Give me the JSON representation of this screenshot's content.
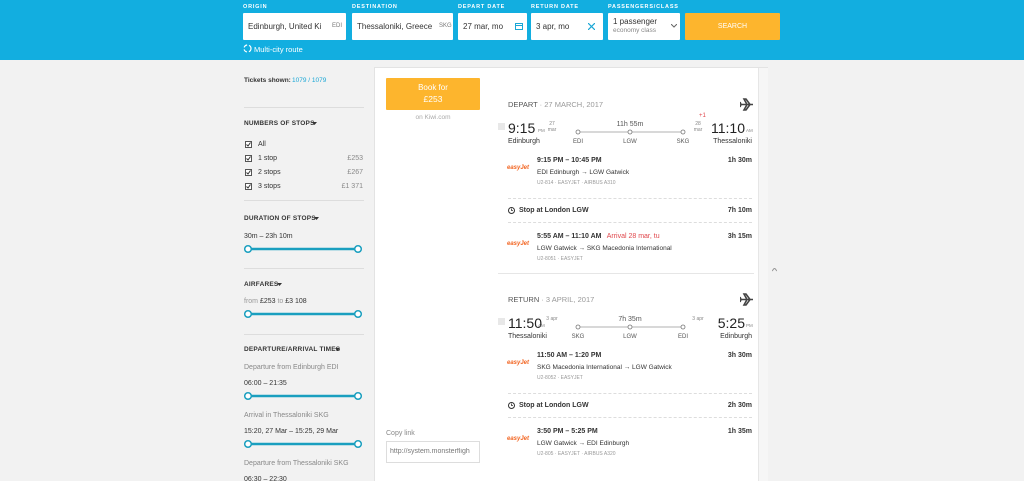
{
  "search": {
    "fields": [
      {
        "label": "ORIGIN",
        "value": "Edinburgh, United Ki",
        "code": "EDI"
      },
      {
        "label": "DESTINATION",
        "value": "Thessaloniki, Greece",
        "code": "SKG"
      },
      {
        "label": "DEPART DATE",
        "value": "27 mar, mo"
      },
      {
        "label": "RETURN DATE",
        "value": "3 apr, mo"
      },
      {
        "label": "PASSENGERS/CLASS",
        "value": "1 passenger",
        "sub": "economy class"
      }
    ],
    "button": "SEARCH",
    "multi_city": "Multi-city route"
  },
  "sidebar": {
    "tickets": {
      "label": "Tickets shown:",
      "value": "1079 / 1079"
    },
    "stops": {
      "title": "NUMBERS OF STOPS",
      "options": [
        {
          "label": "All"
        },
        {
          "label": "1 stop",
          "price": "£253"
        },
        {
          "label": "2 stops",
          "price": "£267"
        },
        {
          "label": "3 stops",
          "price": "£1 371"
        }
      ]
    },
    "duration": {
      "title": "DURATION OF STOPS",
      "range": "30m – 23h 10m"
    },
    "airfares": {
      "title": "AIRFARES",
      "from": "from",
      "min": "£253",
      "to": "to",
      "max": "£3 108"
    },
    "times": {
      "title": "DEPARTURE/ARRIVAL TIMES",
      "filters": [
        {
          "label": "Departure from Edinburgh EDI",
          "range": "06:00 – 21:35"
        },
        {
          "label": "Arrival in Thessaloniki SKG",
          "range": "15:20, 27 Mar – 15:25, 29 Mar"
        },
        {
          "label": "Departure from Thessaloniki SKG",
          "range": "06:30 – 22:30"
        }
      ]
    }
  },
  "result": {
    "book": {
      "label": "Book for",
      "price": "£253",
      "source": "on Kiwi.com"
    },
    "copy_link": {
      "label": "Copy link",
      "url": "http://system.monsterfligh"
    },
    "legs": [
      {
        "direction": "DEPART",
        "date": "27 MARCH, 2017",
        "departure": {
          "time": "9:15",
          "ampm": "PM",
          "date": "27 mar",
          "city": "Edinburgh"
        },
        "arrival": {
          "time": "11:10",
          "ampm": "AM",
          "date": "28 mar",
          "day_offset": "+1",
          "city": "Thessaloniki"
        },
        "duration": "11h 55m",
        "airports": [
          "EDI",
          "LGW",
          "SKG"
        ],
        "segments": [
          {
            "airline": "easyJet",
            "times": "9:15 PM – 10:45 PM",
            "route": "EDI Edinburgh → LGW Gatwick",
            "details": "U2-814 · EASYJET · AIRBUS A310",
            "duration": "1h 30m"
          },
          {
            "airline": "easyJet",
            "times": "5:55 AM – 11:10 AM",
            "note": "Arrival 28 mar, tu",
            "route": "LGW Gatwick → SKG Macedonia International",
            "details": "U2-8051 · EASYJET",
            "duration": "3h 15m"
          }
        ],
        "stop": {
          "label": "Stop at London LGW",
          "duration": "7h 10m"
        }
      },
      {
        "direction": "RETURN",
        "date": "3 APRIL, 2017",
        "departure": {
          "time": "11:50",
          "ampm": "AM",
          "date": "3 apr",
          "city": "Thessaloniki"
        },
        "arrival": {
          "time": "5:25",
          "ampm": "PM",
          "date": "3 apr",
          "city": "Edinburgh"
        },
        "duration": "7h 35m",
        "airports": [
          "SKG",
          "LGW",
          "EDI"
        ],
        "segments": [
          {
            "airline": "easyJet",
            "times": "11:50 AM – 1:20 PM",
            "route": "SKG Macedonia International → LGW Gatwick",
            "details": "U2-8052 · EASYJET",
            "duration": "3h 30m"
          },
          {
            "airline": "easyJet",
            "times": "3:50 PM – 5:25 PM",
            "route": "LGW Gatwick → EDI Edinburgh",
            "details": "U2-805 · EASYJET · AIRBUS A320",
            "duration": "1h 35m"
          }
        ],
        "stop": {
          "label": "Stop at London LGW",
          "duration": "2h 30m"
        }
      }
    ]
  }
}
